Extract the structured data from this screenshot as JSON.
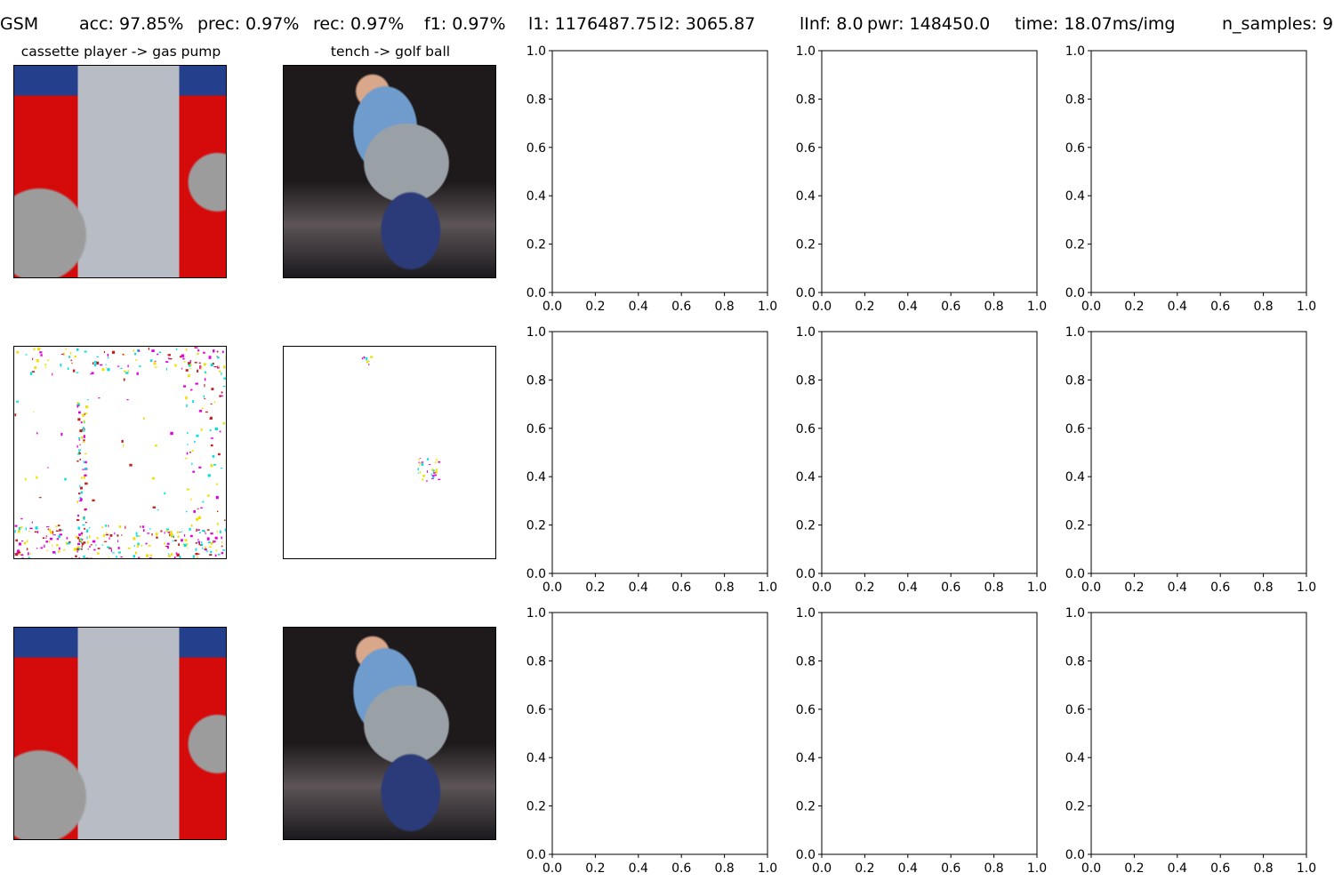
{
  "header": {
    "attack": "GSM",
    "acc": "acc: 97.85%",
    "prec": "prec: 0.97%",
    "rec": "rec: 0.97%",
    "f1": "f1: 0.97%",
    "l1": "l1: 1176487.75",
    "l2": "l2: 3065.87",
    "linf": "lInf: 8.0",
    "pwr": "pwr: 148450.0",
    "time": "time: 18.07ms/img",
    "n_samples": "n_samples: 9"
  },
  "panels": {
    "col1_title": "cassette player -> gas pump",
    "col2_title": "tench -> golf ball"
  },
  "chart_data": {
    "type": "scatter",
    "axes_count": 9,
    "series": [],
    "xlim": [
      0.0,
      1.0
    ],
    "ylim": [
      0.0,
      1.0
    ],
    "xticks": [
      "0.0",
      "0.2",
      "0.4",
      "0.6",
      "0.8",
      "1.0"
    ],
    "yticks": [
      "0.0",
      "0.2",
      "0.4",
      "0.6",
      "0.8",
      "1.0"
    ],
    "grid": false
  },
  "colors": {
    "perturbation_magenta": "#e000e0",
    "perturbation_cyan": "#00e0e0",
    "perturbation_yellow": "#f0e000"
  }
}
